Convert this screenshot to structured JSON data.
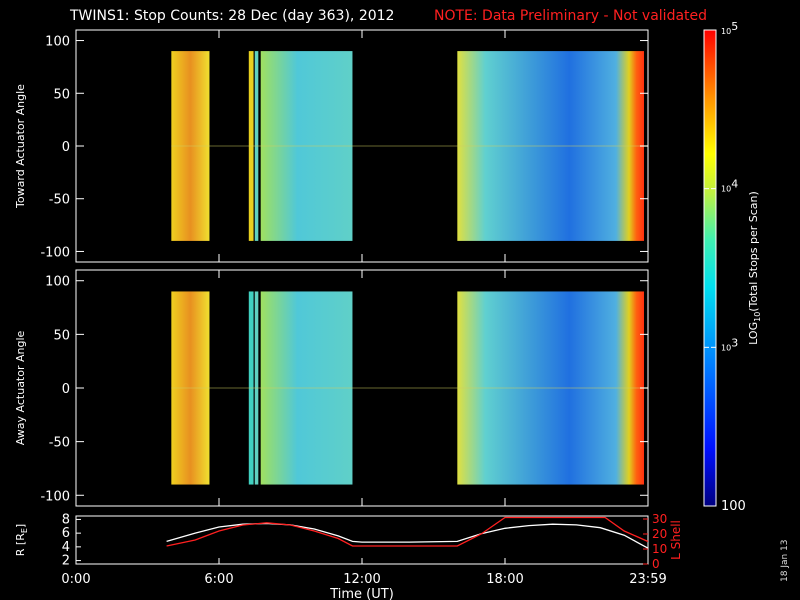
{
  "title": {
    "main": "TWINS1: Stop Counts: 28 Dec (day 363), 2012",
    "note": "NOTE: Data Preliminary - Not validated"
  },
  "date_stamp": "18 Jan 13",
  "colors": {
    "background": "#000000",
    "axis": "#ffffff",
    "note": "#ff2020",
    "r_curve": "#ffffff",
    "lshell_curve": "#ff2020"
  },
  "chart_data": [
    {
      "type": "heatmap",
      "ylabel": "Toward Actuator Angle",
      "ylim": [
        -110,
        110
      ],
      "yticks": [
        100,
        50,
        0,
        -50,
        -100
      ],
      "ytick_labels": [
        "100",
        "50",
        "0",
        "-50",
        "-100"
      ],
      "xlim": [
        0,
        24
      ],
      "angle_range": [
        -90,
        90
      ],
      "segments": [
        {
          "start": 4.0,
          "end": 5.6,
          "color": "#e8e020"
        },
        {
          "start": 7.25,
          "end": 7.45,
          "color": "#e8d020"
        },
        {
          "start": 7.5,
          "end": 7.65,
          "color": "#60d0c0"
        },
        {
          "start": 7.75,
          "end": 11.6,
          "color": "#50c8d8"
        },
        {
          "start": 16.0,
          "end": 24.2,
          "color": "#40a0e0"
        }
      ]
    },
    {
      "type": "heatmap",
      "ylabel": "Away Actuator Angle",
      "ylim": [
        -110,
        110
      ],
      "yticks": [
        100,
        50,
        0,
        -50,
        -100
      ],
      "ytick_labels": [
        "100",
        "50",
        "0",
        "-50",
        "-100"
      ],
      "xlim": [
        0,
        24
      ],
      "angle_range": [
        -90,
        90
      ],
      "segments": [
        {
          "start": 4.0,
          "end": 5.6,
          "color": "#e0e030"
        },
        {
          "start": 7.25,
          "end": 7.45,
          "color": "#40d0c0"
        },
        {
          "start": 7.5,
          "end": 7.65,
          "color": "#60d0c0"
        },
        {
          "start": 7.75,
          "end": 11.6,
          "color": "#50c8d8"
        },
        {
          "start": 16.0,
          "end": 24.2,
          "color": "#3090e0"
        }
      ]
    },
    {
      "type": "line",
      "xlabel": "Time (UT)",
      "ylabel": "R [R_E]",
      "ylabel_main": "R [R",
      "ylabel_sub": "E",
      "ylabel_end": "]",
      "ylabel_right": "L Shell",
      "xlim": [
        0,
        24
      ],
      "xticks": [
        0,
        6,
        12,
        18,
        24
      ],
      "xtick_labels": [
        "0:00",
        "6:00",
        "12:00",
        "18:00",
        "23:59"
      ],
      "ylim": [
        1.5,
        8.5
      ],
      "yticks": [
        8,
        6,
        4,
        2
      ],
      "ytick_labels": [
        "8",
        "6",
        "4",
        "2"
      ],
      "ylim_right": [
        0,
        32
      ],
      "yticks_right": [
        30,
        20,
        10,
        0
      ],
      "ytick_labels_right": [
        "30",
        "20",
        "10",
        "0"
      ],
      "series": [
        {
          "axis": "left",
          "x": [
            3.8,
            5,
            6,
            7,
            8,
            9,
            10,
            11,
            11.6,
            12,
            14,
            16,
            17,
            18,
            19,
            20,
            21,
            22,
            23,
            24
          ],
          "y": [
            4.8,
            6.0,
            6.9,
            7.3,
            7.4,
            7.2,
            6.6,
            5.6,
            4.8,
            4.7,
            4.7,
            4.8,
            5.9,
            6.7,
            7.1,
            7.3,
            7.2,
            6.8,
            5.7,
            3.8
          ]
        },
        {
          "axis": "right",
          "x": [
            3.8,
            5,
            6,
            7,
            8,
            9,
            10,
            11,
            11.6,
            12,
            14,
            16,
            17,
            18,
            22.2,
            23,
            24
          ],
          "y": [
            12,
            16,
            22,
            26,
            27.5,
            26,
            22,
            17,
            12,
            12,
            12,
            12,
            20,
            31,
            31,
            22,
            15
          ]
        }
      ]
    }
  ],
  "colorbar": {
    "label": "LOG10(Total Stops per Scan)",
    "label_main": "LOG",
    "label_sub": "10",
    "label_rest": "(Total Stops per Scan)",
    "ticks": [
      {
        "base": "10",
        "exp": "5",
        "value": 100000
      },
      {
        "base": "10",
        "exp": "4",
        "value": 10000
      },
      {
        "base": "10",
        "exp": "3",
        "value": 1000
      },
      {
        "base": "100",
        "exp": "",
        "value": 100
      }
    ]
  }
}
